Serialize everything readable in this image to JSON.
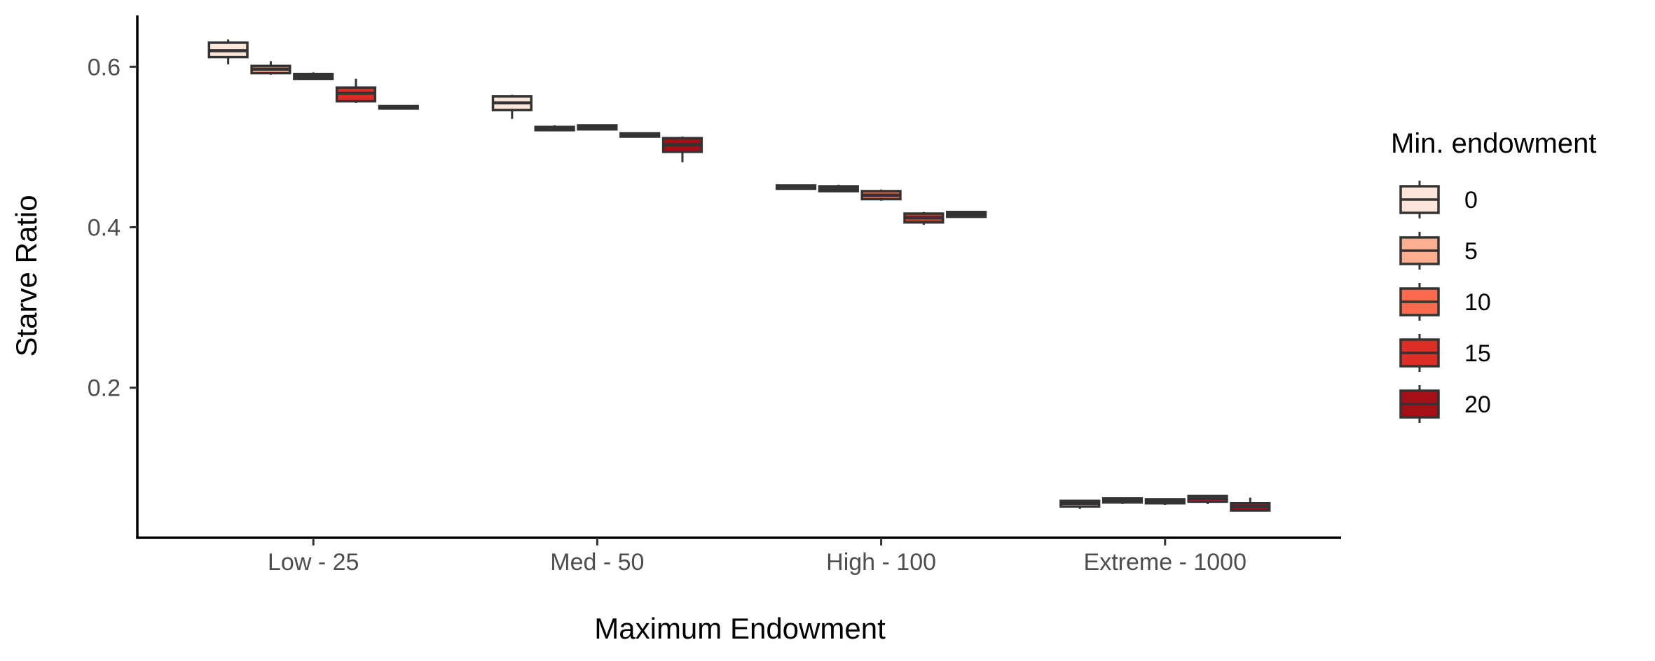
{
  "chart_data": {
    "type": "boxplot",
    "xlabel": "Maximum Endowment",
    "ylabel": "Starve Ratio",
    "categories": [
      "Low - 25",
      "Med - 50",
      "High - 100",
      "Extreme - 1000"
    ],
    "ylim": [
      0.013,
      0.664
    ],
    "yticks": [
      0.2,
      0.4,
      0.6
    ],
    "ytick_labels": [
      "0.2",
      "0.4",
      "0.6"
    ],
    "grid": false,
    "legend": {
      "title": "Min. endowment",
      "position": "right"
    },
    "series": [
      {
        "name": "0",
        "color": "#FEE5D9",
        "boxes": [
          {
            "min": 0.603,
            "q1": 0.612,
            "median": 0.62,
            "q3": 0.63,
            "max": 0.634
          },
          {
            "min": 0.535,
            "q1": 0.546,
            "median": 0.555,
            "q3": 0.563,
            "max": 0.565
          },
          {
            "min": 0.447,
            "q1": 0.448,
            "median": 0.45,
            "q3": 0.452,
            "max": 0.453
          },
          {
            "min": 0.049,
            "q1": 0.052,
            "median": 0.056,
            "q3": 0.059,
            "max": 0.06
          }
        ]
      },
      {
        "name": "5",
        "color": "#FCAE91",
        "boxes": [
          {
            "min": 0.59,
            "q1": 0.592,
            "median": 0.597,
            "q3": 0.601,
            "max": 0.607
          },
          {
            "min": 0.52,
            "q1": 0.521,
            "median": 0.523,
            "q3": 0.525,
            "max": 0.527
          },
          {
            "min": 0.444,
            "q1": 0.445,
            "median": 0.448,
            "q3": 0.451,
            "max": 0.453
          },
          {
            "min": 0.055,
            "q1": 0.057,
            "median": 0.059,
            "q3": 0.062,
            "max": 0.063
          }
        ]
      },
      {
        "name": "10",
        "color": "#FB6A4A",
        "boxes": [
          {
            "min": 0.584,
            "q1": 0.585,
            "median": 0.588,
            "q3": 0.591,
            "max": 0.593
          },
          {
            "min": 0.521,
            "q1": 0.522,
            "median": 0.524,
            "q3": 0.527,
            "max": 0.528
          },
          {
            "min": 0.433,
            "q1": 0.435,
            "median": 0.44,
            "q3": 0.445,
            "max": 0.447
          },
          {
            "min": 0.054,
            "q1": 0.056,
            "median": 0.058,
            "q3": 0.061,
            "max": 0.062
          }
        ]
      },
      {
        "name": "15",
        "color": "#DE2D26",
        "boxes": [
          {
            "min": 0.555,
            "q1": 0.557,
            "median": 0.567,
            "q3": 0.574,
            "max": 0.585
          },
          {
            "min": 0.512,
            "q1": 0.513,
            "median": 0.515,
            "q3": 0.517,
            "max": 0.518
          },
          {
            "min": 0.403,
            "q1": 0.406,
            "median": 0.412,
            "q3": 0.417,
            "max": 0.419
          },
          {
            "min": 0.055,
            "q1": 0.058,
            "median": 0.062,
            "q3": 0.065,
            "max": 0.066
          }
        ]
      },
      {
        "name": "20",
        "color": "#A50F15",
        "boxes": [
          {
            "min": 0.547,
            "q1": 0.548,
            "median": 0.549,
            "q3": 0.551,
            "max": 0.552
          },
          {
            "min": 0.481,
            "q1": 0.494,
            "median": 0.503,
            "q3": 0.511,
            "max": 0.513
          },
          {
            "min": 0.412,
            "q1": 0.413,
            "median": 0.416,
            "q3": 0.419,
            "max": 0.42
          },
          {
            "min": 0.046,
            "q1": 0.047,
            "median": 0.052,
            "q3": 0.056,
            "max": 0.063
          }
        ]
      }
    ]
  }
}
